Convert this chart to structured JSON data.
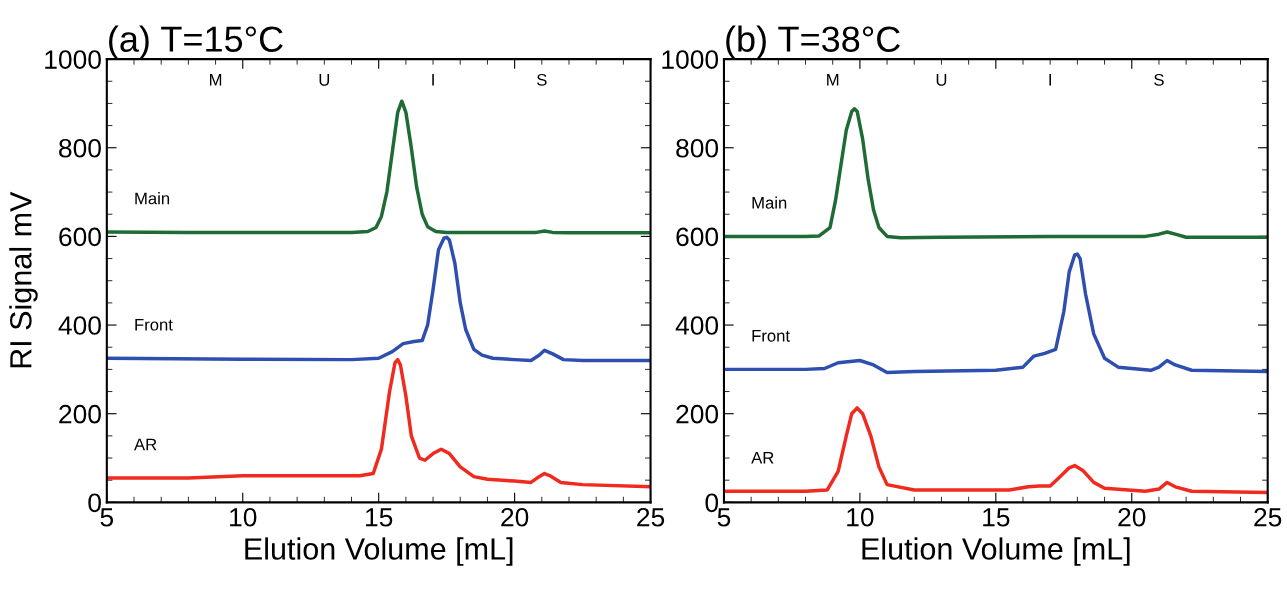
{
  "chart_data": [
    {
      "type": "line",
      "title": "(a) T=15°C",
      "xlabel": "Elution Volume [mL]",
      "ylabel": "RI Signal mV",
      "xlim": [
        5,
        25
      ],
      "xticks": [
        5,
        10,
        15,
        20,
        25
      ],
      "ylim": [
        0,
        1000
      ],
      "yticks": [
        0,
        200,
        400,
        600,
        800,
        1000
      ],
      "grid": false,
      "legend": false,
      "marker": "none",
      "line_style": "solid",
      "annotations": [
        "M",
        "U",
        "I",
        "S"
      ],
      "series": [
        {
          "name": "Main",
          "color": "#1e6b35",
          "x": [
            5,
            8,
            11,
            14,
            14.6,
            14.9,
            15.1,
            15.3,
            15.5,
            15.7,
            15.85,
            16.0,
            16.2,
            16.4,
            16.6,
            16.8,
            17.1,
            17.5,
            20,
            20.8,
            21.1,
            21.4,
            22,
            25
          ],
          "values": [
            610,
            609,
            609,
            609,
            611,
            620,
            645,
            700,
            790,
            880,
            905,
            880,
            800,
            710,
            650,
            622,
            611,
            609,
            609,
            609,
            612,
            609,
            608,
            608
          ]
        },
        {
          "name": "Front",
          "color": "#2f4fb0",
          "x": [
            5,
            10,
            14,
            15,
            15.5,
            15.9,
            16.3,
            16.6,
            16.8,
            17.0,
            17.2,
            17.4,
            17.5,
            17.6,
            17.8,
            18.0,
            18.2,
            18.5,
            18.8,
            19.2,
            20,
            20.6,
            20.9,
            21.1,
            21.4,
            21.8,
            22.5,
            25
          ],
          "values": [
            325,
            323,
            322,
            325,
            340,
            358,
            363,
            365,
            400,
            480,
            570,
            596,
            598,
            592,
            540,
            450,
            390,
            345,
            332,
            325,
            322,
            320,
            332,
            343,
            335,
            322,
            320,
            320
          ]
        },
        {
          "name": "AR",
          "color": "#f02a1e",
          "x": [
            5,
            8,
            10,
            14.3,
            14.8,
            15.1,
            15.4,
            15.6,
            15.7,
            15.8,
            16.0,
            16.2,
            16.5,
            16.7,
            17.0,
            17.3,
            17.6,
            18,
            18.5,
            19,
            20,
            20.6,
            20.9,
            21.1,
            21.3,
            21.7,
            22.5,
            25
          ],
          "values": [
            55,
            55,
            60,
            60,
            65,
            120,
            250,
            315,
            322,
            310,
            240,
            150,
            100,
            95,
            110,
            120,
            110,
            80,
            58,
            52,
            48,
            45,
            58,
            65,
            60,
            45,
            40,
            35
          ]
        }
      ]
    },
    {
      "type": "line",
      "title": "(b) T=38°C",
      "xlabel": "Elution Volume [mL]",
      "xlim": [
        5,
        25
      ],
      "xticks": [
        5,
        10,
        15,
        20,
        25
      ],
      "ylim": [
        0,
        1000
      ],
      "yticks": [
        0,
        200,
        400,
        600,
        800,
        1000
      ],
      "grid": false,
      "legend": false,
      "marker": "none",
      "line_style": "solid",
      "annotations": [
        "M",
        "U",
        "I",
        "S"
      ],
      "series": [
        {
          "name": "Main",
          "color": "#1e6b35",
          "x": [
            5,
            8,
            8.5,
            8.9,
            9.1,
            9.3,
            9.5,
            9.7,
            9.8,
            9.9,
            10.1,
            10.3,
            10.5,
            10.7,
            11,
            11.5,
            13,
            17,
            20.5,
            21,
            21.3,
            21.6,
            22,
            25
          ],
          "values": [
            600,
            600,
            601,
            620,
            680,
            760,
            840,
            882,
            888,
            882,
            820,
            730,
            660,
            620,
            600,
            597,
            598,
            600,
            600,
            605,
            610,
            605,
            598,
            598
          ]
        },
        {
          "name": "Front",
          "color": "#2f4fb0",
          "x": [
            5,
            8,
            8.7,
            9.2,
            10,
            10.5,
            11,
            12,
            15,
            16,
            16.4,
            16.8,
            17.2,
            17.5,
            17.7,
            17.9,
            18.0,
            18.1,
            18.3,
            18.6,
            19,
            19.5,
            20.7,
            21.0,
            21.3,
            21.6,
            22.2,
            25
          ],
          "values": [
            300,
            300,
            302,
            315,
            320,
            310,
            293,
            295,
            298,
            305,
            330,
            336,
            345,
            430,
            520,
            558,
            560,
            550,
            470,
            380,
            325,
            305,
            298,
            305,
            320,
            310,
            298,
            295
          ]
        },
        {
          "name": "AR",
          "color": "#f02a1e",
          "x": [
            5,
            8,
            8.8,
            9.2,
            9.5,
            9.7,
            9.9,
            10.1,
            10.4,
            10.7,
            11,
            12,
            15.5,
            16.2,
            16.6,
            17.0,
            17.4,
            17.7,
            17.9,
            18.2,
            18.6,
            19,
            20.5,
            21.0,
            21.3,
            21.6,
            22.2,
            25
          ],
          "values": [
            25,
            25,
            28,
            70,
            150,
            200,
            213,
            200,
            150,
            80,
            40,
            28,
            28,
            35,
            37,
            37,
            60,
            78,
            83,
            72,
            45,
            32,
            25,
            30,
            45,
            35,
            25,
            22
          ]
        }
      ]
    }
  ]
}
